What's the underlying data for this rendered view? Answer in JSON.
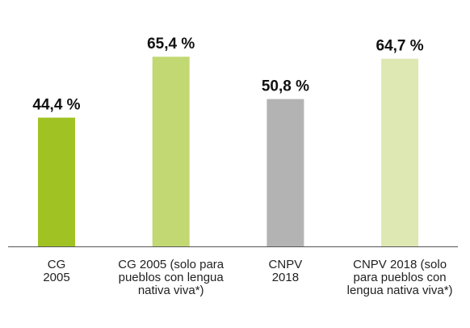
{
  "chart_data": {
    "type": "bar",
    "categories": [
      "CG 2005",
      "CG 2005 (solo para pueblos con lengua nativa viva*)",
      "CNPV 2018",
      "CNPV 2018 (solo para pueblos con lengua nativa viva*)"
    ],
    "values": [
      44.4,
      65.4,
      50.8,
      64.7
    ],
    "value_labels": [
      "44,4 %",
      "65,4 %",
      "50,8 %",
      "64,7 %"
    ],
    "colors": [
      "#a0c323",
      "#c2d873",
      "#b3b3b3",
      "#dde8b3"
    ]
  }
}
